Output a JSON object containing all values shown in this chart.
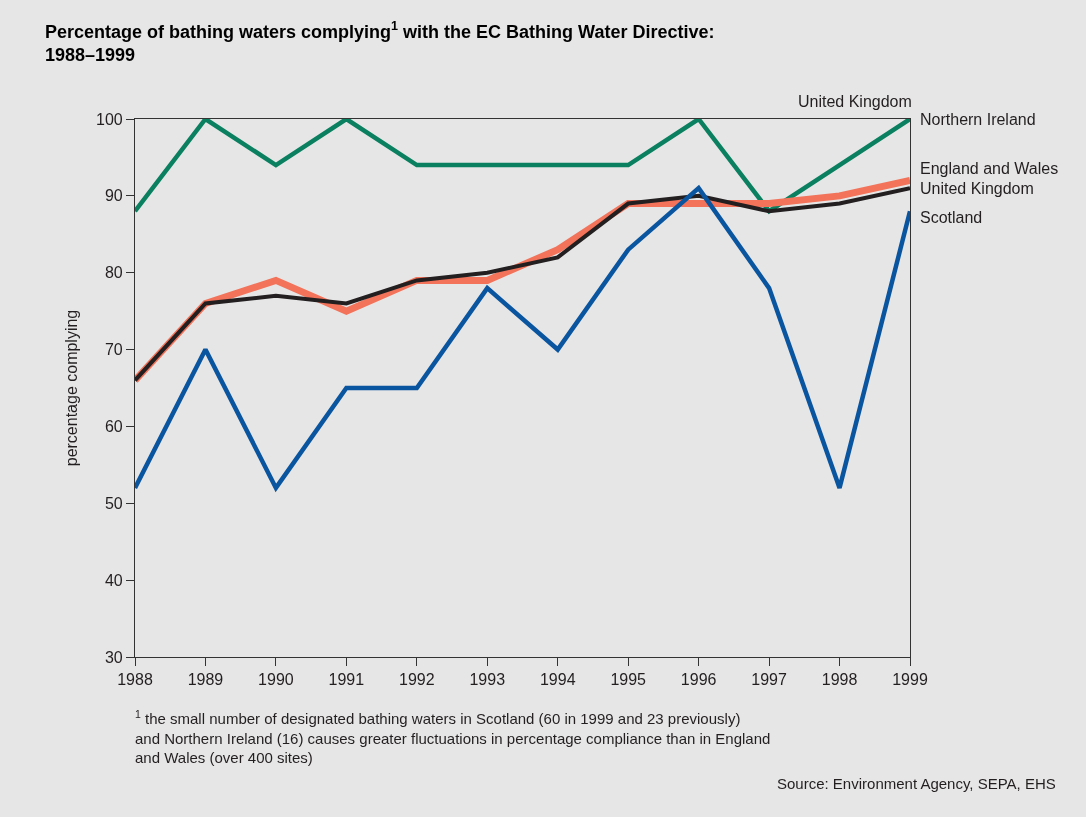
{
  "chart_data": {
    "type": "line",
    "title": "Percentage of bathing waters complying$^{1}$ with the EC Bathing Water Directive:\n1988–1999",
    "ylabel": "percentage complying",
    "x": [
      1988,
      1989,
      1990,
      1991,
      1992,
      1993,
      1994,
      1995,
      1996,
      1997,
      1998,
      1999
    ],
    "xlim": [
      1988,
      1999
    ],
    "xticks": [
      1988,
      1989,
      1990,
      1991,
      1992,
      1993,
      1994,
      1995,
      1996,
      1997,
      1998,
      1999
    ],
    "ylim": [
      30,
      100
    ],
    "yticks": [
      30,
      40,
      50,
      60,
      70,
      80,
      90,
      100
    ],
    "grid": false,
    "legend": false,
    "marker": "none",
    "line_style": "solid",
    "series": [
      {
        "name": "Northern Ireland",
        "color": "#0a8060",
        "values": [
          88,
          100,
          94,
          100,
          94,
          94,
          94,
          94,
          100,
          88,
          94,
          100
        ]
      },
      {
        "name": "England and Wales",
        "color": "#f2735a",
        "values": [
          66,
          76,
          79,
          75,
          79,
          79,
          83,
          89,
          89,
          89,
          90,
          92
        ]
      },
      {
        "name": "United Kingdom",
        "color": "#231f20",
        "values": [
          66,
          76,
          77,
          76,
          79,
          80,
          82,
          89,
          90,
          88,
          89,
          91
        ]
      },
      {
        "name": "Scotland",
        "color": "#0a55a0",
        "values": [
          52,
          70,
          52,
          65,
          65,
          78,
          70,
          83,
          91,
          78,
          52,
          88
        ]
      }
    ],
    "annotations": [
      "United Kingdom",
      "$^{1}$ the small number of designated bathing waters in Scotland (60 in 1999 and 23 previously)\nand Northern Ireland (16) causes greater fluctuations in percentage compliance than in England\nand Wales (over 400 sites)",
      "Source: Environment Agency, SEPA, EHS"
    ]
  }
}
